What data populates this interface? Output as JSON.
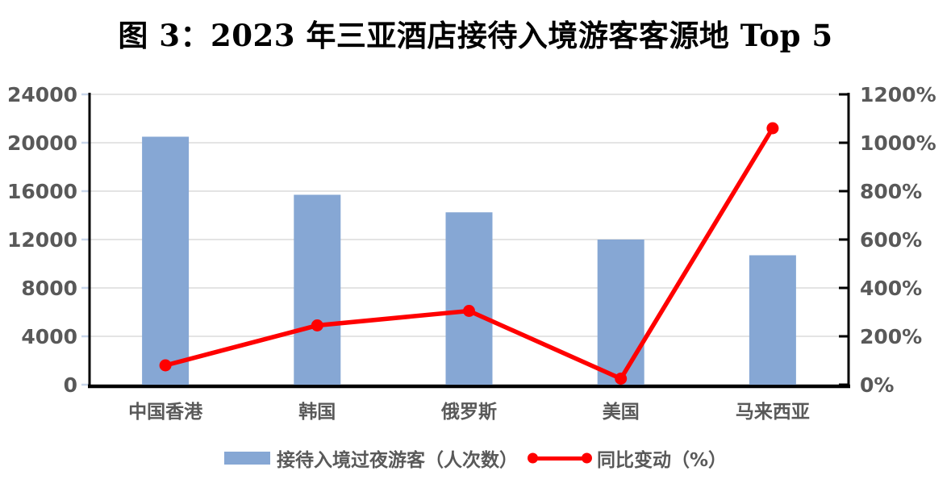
{
  "title": "图 3：2023 年三亚酒店接待入境游客客源地 Top 5",
  "chart_data": {
    "type": "combo",
    "categories": [
      "中国香港",
      "韩国",
      "俄罗斯",
      "美国",
      "马来西亚"
    ],
    "series": [
      {
        "name": "接待入境过夜游客（人次数）",
        "type": "bar",
        "axis": "left",
        "values": [
          20500,
          15700,
          14250,
          12000,
          10700
        ]
      },
      {
        "name": "同比变动（%）",
        "type": "line",
        "axis": "right",
        "values_percent": [
          80,
          245,
          305,
          25,
          1060
        ]
      }
    ],
    "left_axis": {
      "ticks": [
        0,
        4000,
        8000,
        12000,
        16000,
        20000,
        24000
      ],
      "min": 0,
      "max": 24000
    },
    "right_axis": {
      "tick_labels": [
        "0%",
        "200%",
        "400%",
        "600%",
        "800%",
        "1000%",
        "1200%"
      ],
      "min_percent": 0,
      "max_percent": 1200
    },
    "grid": true,
    "legend_position": "bottom"
  },
  "legend": {
    "bar_label": "接待入境过夜游客（人次数）",
    "line_label": "同比变动（%）"
  },
  "colors": {
    "bar": "#86A7D4",
    "line": "#FF0000",
    "text": "#595959",
    "grid": "#E4E4E4",
    "axis": "#000000",
    "left_tick": "#C9D6EA",
    "title": "#000000"
  }
}
